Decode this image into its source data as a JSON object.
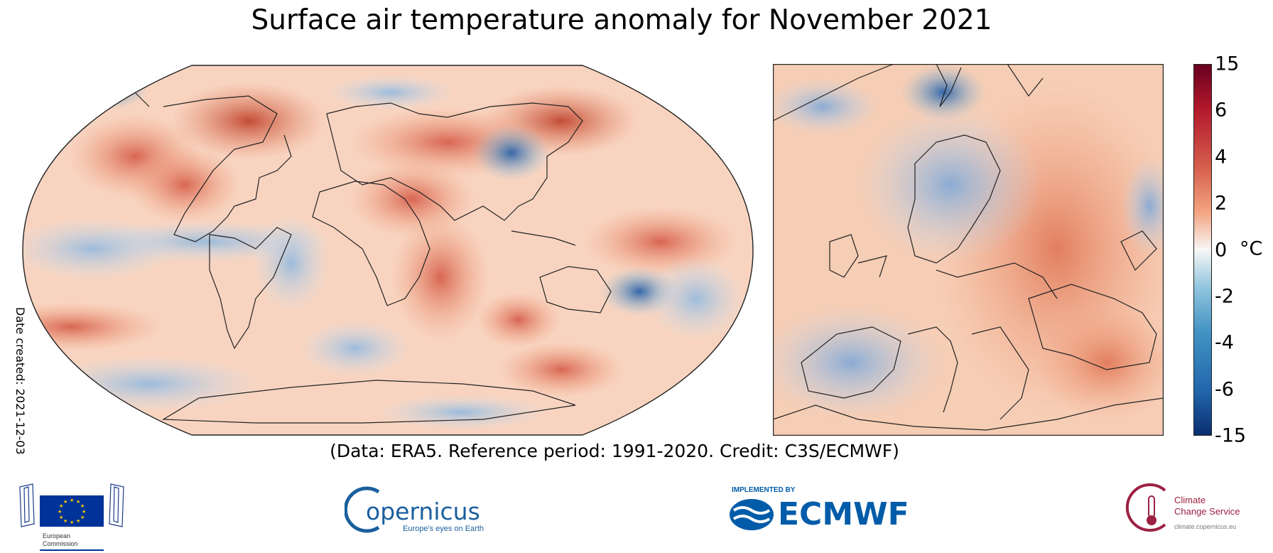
{
  "title": "Surface air temperature anomaly for November 2021",
  "date_created": "Date created: 2021-12-03",
  "credit": "(Data: ERA5.  Reference period: 1991-2020.  Credit: C3S/ECMWF)",
  "colorbar": {
    "ticks": [
      "15",
      "6",
      "4",
      "2",
      "0",
      "-2",
      "-4",
      "-6",
      "-15"
    ],
    "unit": "°C",
    "colors": [
      "#0a2d6e",
      "#2166ac",
      "#4393c3",
      "#92c5de",
      "#f7f7f7",
      "#f4a582",
      "#d6604d",
      "#b2182b",
      "#67001f"
    ]
  },
  "logos": {
    "eu": {
      "text": "European Commission",
      "flag_color": "#003399",
      "star_color": "#ffcc00"
    },
    "copernicus": {
      "name": "opernicus",
      "tagline": "Europe's eyes on Earth",
      "color": "#1a5f9e"
    },
    "ecmwf": {
      "implemented_by": "IMPLEMENTED BY",
      "name": "ECMWF",
      "color": "#005ca9"
    },
    "c3s": {
      "line1": "Climate",
      "line2": "Change Service",
      "tagline": "climate.copernicus.eu",
      "color": "#9c2143"
    }
  }
}
